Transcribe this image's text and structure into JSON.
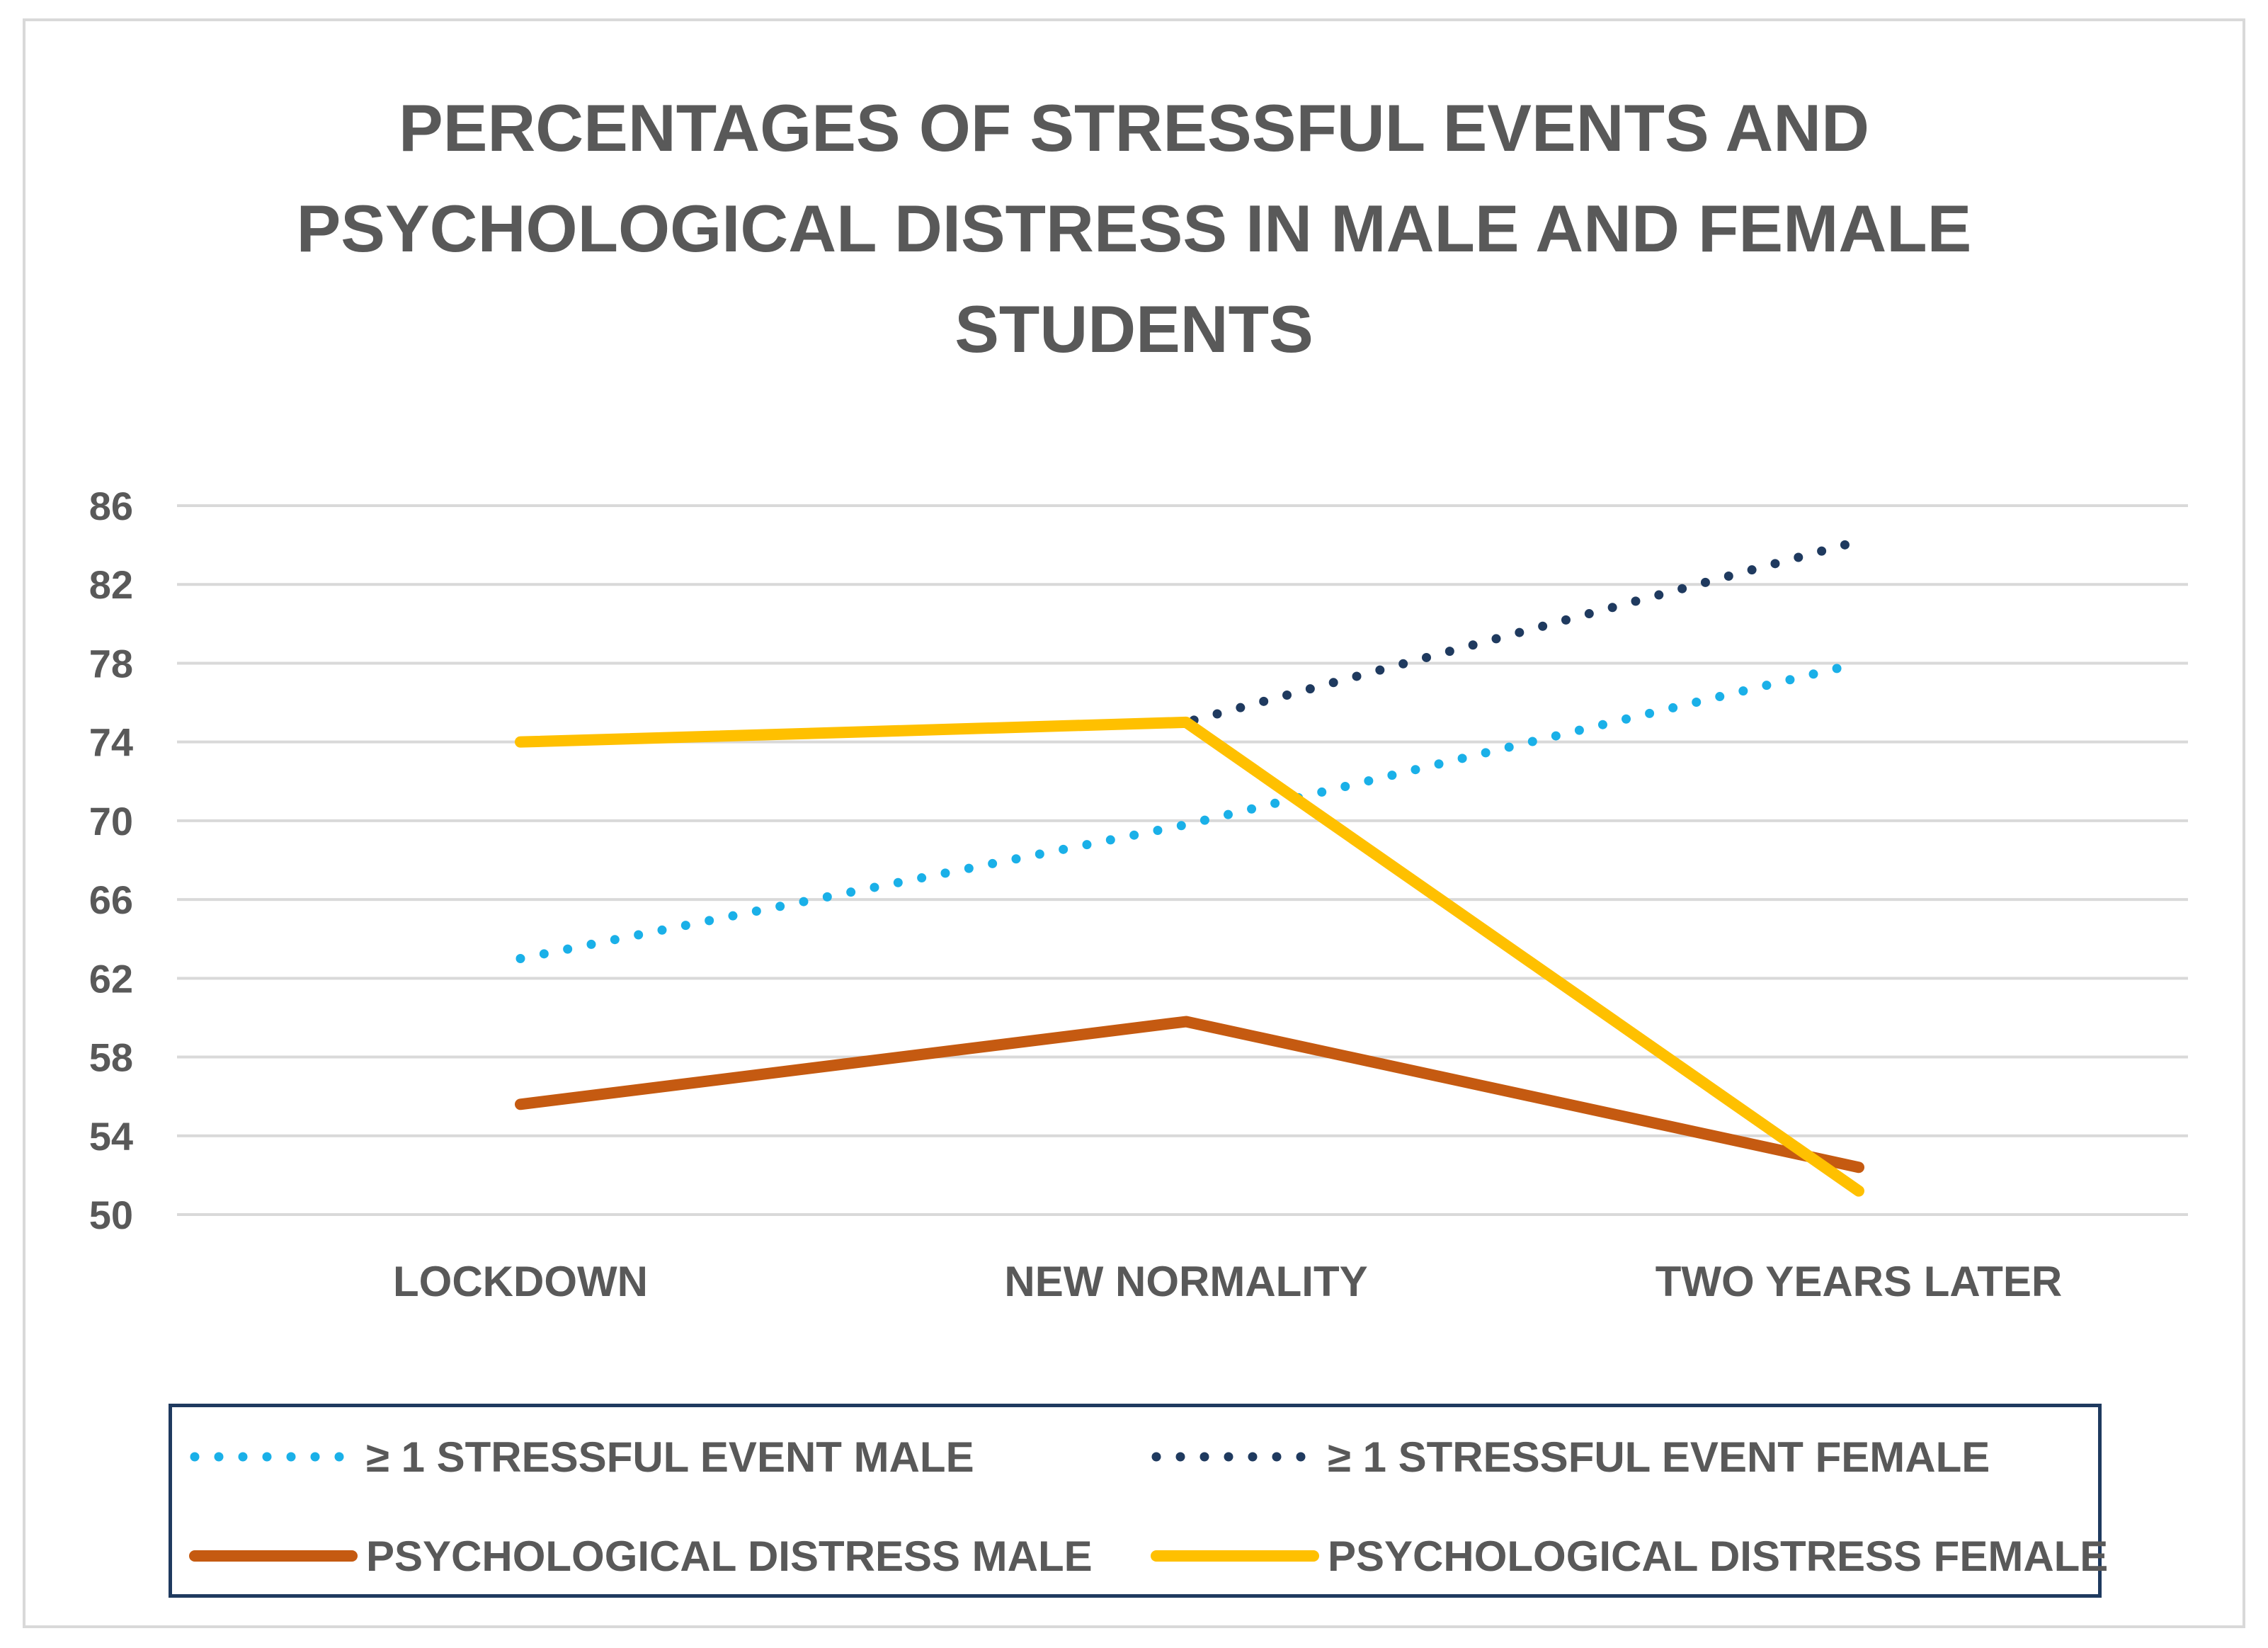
{
  "chart_data": {
    "type": "line",
    "title": "PERCENTAGES OF STRESSFUL EVENTS AND\nPSYCHOLOGICAL DISTRESS IN MALE AND FEMALE\nSTUDENTS",
    "categories": [
      "LOCKDOWN",
      "NEW NORMALITY",
      "TWO YEARS LATER"
    ],
    "ylim": [
      50,
      86
    ],
    "yticks": [
      50,
      54,
      58,
      62,
      66,
      70,
      74,
      78,
      82,
      86
    ],
    "grid": true,
    "legend_position": "bottom",
    "series": [
      {
        "name": "≥ 1 STRESSFUL EVENT MALE",
        "values": [
          63,
          69.8,
          78
        ],
        "color": "#1ab0e8",
        "style": "dotted"
      },
      {
        "name": "≥ 1 STRESSFUL EVENT FEMALE",
        "values": [
          74,
          75,
          84.2
        ],
        "color": "#1f3a5f",
        "style": "dotted"
      },
      {
        "name": "PSYCHOLOGICAL DISTRESS MALE",
        "values": [
          55.6,
          59.8,
          52.4
        ],
        "color": "#c55a11",
        "style": "solid"
      },
      {
        "name": "PSYCHOLOGICAL DISTRESS FEMALE",
        "values": [
          74,
          75,
          51.2
        ],
        "color": "#ffc000",
        "style": "solid"
      }
    ]
  }
}
